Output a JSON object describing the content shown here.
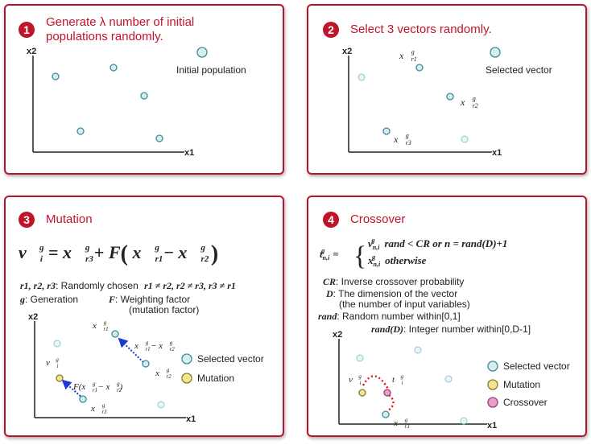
{
  "panels": [
    {
      "number": "1",
      "title_line1": "Generate λ number of initial",
      "title_line2": "populations randomly.",
      "legend": "Initial population",
      "axis_x": "x1",
      "axis_y": "x2"
    },
    {
      "number": "2",
      "title": "Select 3 vectors randomly.",
      "legend": "Selected vector",
      "axis_x": "x1",
      "axis_y": "x2",
      "labels": [
        "x_r1^g",
        "x_r2^g",
        "x_r3^g"
      ]
    },
    {
      "number": "3",
      "title": "Mutation",
      "formula": "v_i^g = x_r3^g + F ( x_r1^g − x_r2^g )",
      "desc1_math": "r1, r2, r3",
      "desc1_text": ": Randomly chosen",
      "desc1_cond": "r1 ≠ r2, r2 ≠ r3, r3 ≠ r1",
      "desc2_math": "g",
      "desc2_text": ": Generation",
      "desc3_math": "F",
      "desc3_text": ": Weighting factor",
      "desc3_text2": "(mutation factor)",
      "legend_selected": "Selected vector",
      "legend_mutation": "Mutation",
      "axis_x": "x1",
      "axis_y": "x2",
      "lbl_diff": "x_r1^g − x_r2^g",
      "lbl_fdiff": "F(x_r1^g − x_r2^g)"
    },
    {
      "number": "4",
      "title": "Crossover",
      "formula_lhs": "t_n,i^g =",
      "formula_case1": "v_n,i^g   rand < CR  or  n = rand(D)+1",
      "formula_case2": "x_n,i^g   otherwise",
      "cr_math": "CR",
      "cr_text": ": Inverse crossover probability",
      "d_math": "D",
      "d_text": ": The dimension of the vector",
      "d_text2": "(the number of input variables)",
      "rand_math": "rand",
      "rand_text": ": Random number within[0,1]",
      "randd_math": "rand(D)",
      "randd_text": ": Integer number within[0,D-1]",
      "legend_selected": "Selected vector",
      "legend_mutation": "Mutation",
      "legend_crossover": "Crossover",
      "axis_x": "x1",
      "axis_y": "x2"
    }
  ],
  "colors": {
    "accent": "#c0142a",
    "selected": "#d6eeee",
    "selected_stroke": "#3a8d9a",
    "mutation": "#f3e590",
    "mutation_stroke": "#8a7a2a",
    "crossover": "#e7a0c8",
    "crossover_stroke": "#9a3a78",
    "arrow_blue": "#1a3ad6",
    "arrow_red": "#e0141e"
  }
}
